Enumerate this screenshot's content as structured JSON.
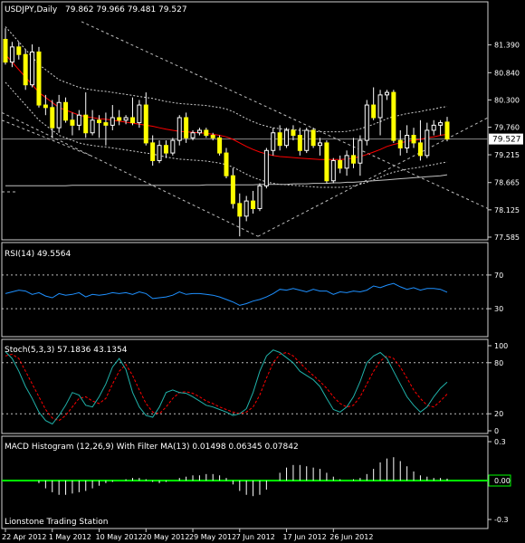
{
  "chart_data": [
    {
      "type": "candlestick",
      "title": "USDJPY,Daily",
      "ohlc_readout": "79.862 79.966 79.481 79.527",
      "ylim": [
        77.585,
        81.885
      ],
      "yticks": [
        "81.390",
        "80.840",
        "80.300",
        "79.760",
        "79.527",
        "79.215",
        "78.665",
        "78.125",
        "77.585"
      ],
      "current_price": 79.527,
      "x_dates": [
        "22 Apr 2012",
        "1 May 2012",
        "10 May 2012",
        "20 May 2012",
        "29 May 2012",
        "7 Jun 2012",
        "17 Jun 2012",
        "26 Jun 2012"
      ],
      "candles": [
        {
          "o": 81.5,
          "h": 81.72,
          "l": 81.0,
          "c": 81.05
        },
        {
          "o": 81.05,
          "h": 81.45,
          "l": 80.95,
          "c": 81.35
        },
        {
          "o": 81.35,
          "h": 81.45,
          "l": 81.1,
          "c": 81.2
        },
        {
          "o": 81.2,
          "h": 81.3,
          "l": 80.5,
          "c": 80.6
        },
        {
          "o": 80.6,
          "h": 81.4,
          "l": 80.55,
          "c": 81.25
        },
        {
          "o": 81.25,
          "h": 81.35,
          "l": 80.15,
          "c": 80.2
        },
        {
          "o": 80.2,
          "h": 80.4,
          "l": 80.0,
          "c": 80.15
        },
        {
          "o": 80.15,
          "h": 80.3,
          "l": 79.55,
          "c": 79.75
        },
        {
          "o": 79.75,
          "h": 80.4,
          "l": 79.65,
          "c": 80.25
        },
        {
          "o": 80.25,
          "h": 80.35,
          "l": 79.85,
          "c": 79.9
        },
        {
          "o": 79.9,
          "h": 80.05,
          "l": 79.6,
          "c": 79.8
        },
        {
          "o": 79.8,
          "h": 80.1,
          "l": 79.7,
          "c": 80.0
        },
        {
          "o": 80.0,
          "h": 80.45,
          "l": 79.55,
          "c": 79.65
        },
        {
          "o": 79.65,
          "h": 80.1,
          "l": 79.6,
          "c": 79.9
        },
        {
          "o": 79.9,
          "h": 80.0,
          "l": 79.55,
          "c": 79.85
        },
        {
          "o": 79.85,
          "h": 80.05,
          "l": 79.4,
          "c": 79.8
        },
        {
          "o": 79.8,
          "h": 80.2,
          "l": 79.7,
          "c": 79.95
        },
        {
          "o": 79.95,
          "h": 80.1,
          "l": 79.8,
          "c": 79.9
        },
        {
          "o": 79.9,
          "h": 80.0,
          "l": 79.82,
          "c": 79.95
        },
        {
          "o": 79.95,
          "h": 80.35,
          "l": 79.8,
          "c": 79.85
        },
        {
          "o": 79.85,
          "h": 80.3,
          "l": 79.75,
          "c": 80.2
        },
        {
          "o": 80.2,
          "h": 80.45,
          "l": 79.4,
          "c": 79.45
        },
        {
          "o": 79.45,
          "h": 79.6,
          "l": 79.0,
          "c": 79.1
        },
        {
          "o": 79.1,
          "h": 79.5,
          "l": 79.05,
          "c": 79.4
        },
        {
          "o": 79.4,
          "h": 79.5,
          "l": 79.15,
          "c": 79.25
        },
        {
          "o": 79.25,
          "h": 79.55,
          "l": 79.2,
          "c": 79.5
        },
        {
          "o": 79.5,
          "h": 80.0,
          "l": 79.4,
          "c": 79.95
        },
        {
          "o": 79.95,
          "h": 80.05,
          "l": 79.45,
          "c": 79.55
        },
        {
          "o": 79.55,
          "h": 79.7,
          "l": 79.5,
          "c": 79.65
        },
        {
          "o": 79.65,
          "h": 79.75,
          "l": 79.6,
          "c": 79.7
        },
        {
          "o": 79.7,
          "h": 79.75,
          "l": 79.55,
          "c": 79.6
        },
        {
          "o": 79.6,
          "h": 79.65,
          "l": 79.5,
          "c": 79.55
        },
        {
          "o": 79.55,
          "h": 79.6,
          "l": 79.2,
          "c": 79.25
        },
        {
          "o": 79.25,
          "h": 79.35,
          "l": 78.75,
          "c": 78.8
        },
        {
          "o": 78.8,
          "h": 78.95,
          "l": 78.15,
          "c": 78.25
        },
        {
          "o": 78.25,
          "h": 78.45,
          "l": 77.6,
          "c": 78.0
        },
        {
          "o": 78.0,
          "h": 78.4,
          "l": 77.9,
          "c": 78.3
        },
        {
          "o": 78.3,
          "h": 78.5,
          "l": 78.05,
          "c": 78.15
        },
        {
          "o": 78.15,
          "h": 78.65,
          "l": 78.1,
          "c": 78.6
        },
        {
          "o": 78.6,
          "h": 79.35,
          "l": 78.55,
          "c": 79.3
        },
        {
          "o": 79.3,
          "h": 79.75,
          "l": 79.2,
          "c": 79.65
        },
        {
          "o": 79.65,
          "h": 79.8,
          "l": 79.3,
          "c": 79.4
        },
        {
          "o": 79.4,
          "h": 79.75,
          "l": 79.35,
          "c": 79.7
        },
        {
          "o": 79.7,
          "h": 79.8,
          "l": 79.5,
          "c": 79.6
        },
        {
          "o": 79.6,
          "h": 79.75,
          "l": 79.2,
          "c": 79.3
        },
        {
          "o": 79.3,
          "h": 79.75,
          "l": 79.25,
          "c": 79.7
        },
        {
          "o": 79.7,
          "h": 79.75,
          "l": 79.35,
          "c": 79.4
        },
        {
          "o": 79.4,
          "h": 79.55,
          "l": 79.2,
          "c": 79.45
        },
        {
          "o": 79.45,
          "h": 79.5,
          "l": 78.65,
          "c": 78.7
        },
        {
          "o": 78.7,
          "h": 79.15,
          "l": 78.65,
          "c": 79.1
        },
        {
          "o": 79.1,
          "h": 79.2,
          "l": 78.85,
          "c": 78.95
        },
        {
          "o": 78.95,
          "h": 79.3,
          "l": 78.8,
          "c": 79.2
        },
        {
          "o": 79.2,
          "h": 79.55,
          "l": 78.95,
          "c": 79.05
        },
        {
          "o": 79.05,
          "h": 79.6,
          "l": 78.8,
          "c": 79.5
        },
        {
          "o": 79.5,
          "h": 80.3,
          "l": 79.4,
          "c": 80.2
        },
        {
          "o": 80.2,
          "h": 80.55,
          "l": 79.9,
          "c": 79.95
        },
        {
          "o": 79.95,
          "h": 80.5,
          "l": 79.6,
          "c": 80.4
        },
        {
          "o": 80.4,
          "h": 80.5,
          "l": 80.3,
          "c": 80.45
        },
        {
          "o": 80.45,
          "h": 80.5,
          "l": 79.45,
          "c": 79.5
        },
        {
          "o": 79.5,
          "h": 79.7,
          "l": 79.2,
          "c": 79.35
        },
        {
          "o": 79.35,
          "h": 79.8,
          "l": 79.25,
          "c": 79.6
        },
        {
          "o": 79.6,
          "h": 79.75,
          "l": 79.35,
          "c": 79.45
        },
        {
          "o": 79.45,
          "h": 79.9,
          "l": 79.1,
          "c": 79.2
        },
        {
          "o": 79.2,
          "h": 79.85,
          "l": 79.15,
          "c": 79.7
        },
        {
          "o": 79.7,
          "h": 79.9,
          "l": 79.6,
          "c": 79.8
        },
        {
          "o": 79.8,
          "h": 79.9,
          "l": 79.6,
          "c": 79.85
        },
        {
          "o": 79.862,
          "h": 79.966,
          "l": 79.481,
          "c": 79.527
        }
      ],
      "ma_fast": [
        81.2,
        81.05,
        80.9,
        80.75,
        80.6,
        80.45,
        80.35,
        80.25,
        80.15,
        80.1,
        80.05,
        80.0,
        79.97,
        79.95,
        79.93,
        79.92,
        79.9,
        79.88,
        79.86,
        79.84,
        79.82,
        79.8,
        79.78,
        79.75,
        79.72,
        79.7,
        79.68,
        79.67,
        79.66,
        79.65,
        79.64,
        79.62,
        79.6,
        79.57,
        79.52,
        79.45,
        79.38,
        79.32,
        79.27,
        79.23,
        79.2,
        79.18,
        79.17,
        79.16,
        79.15,
        79.14,
        79.13,
        79.12,
        79.12,
        79.12,
        79.12,
        79.13,
        79.15,
        79.18,
        79.22,
        79.27,
        79.32,
        79.38,
        79.42,
        79.45,
        79.48,
        79.5,
        79.52,
        79.55,
        79.57,
        79.6,
        79.62
      ],
      "ma_slow": [
        78.6,
        78.6,
        78.6,
        78.6,
        78.6,
        78.6,
        78.6,
        78.6,
        78.6,
        78.6,
        78.61,
        78.61,
        78.61,
        78.61,
        78.61,
        78.61,
        78.61,
        78.61,
        78.61,
        78.61,
        78.61,
        78.61,
        78.61,
        78.61,
        78.61,
        78.61,
        78.61,
        78.61,
        78.61,
        78.61,
        78.62,
        78.62,
        78.62,
        78.62,
        78.62,
        78.62,
        78.62,
        78.62,
        78.63,
        78.63,
        78.63,
        78.63,
        78.63,
        78.64,
        78.64,
        78.64,
        78.65,
        78.65,
        78.65,
        78.66,
        78.66,
        78.67,
        78.67,
        78.68,
        78.69,
        78.7,
        78.71,
        78.72,
        78.73,
        78.74,
        78.75,
        78.76,
        78.77,
        78.78,
        78.79,
        78.8,
        78.82
      ]
    },
    {
      "type": "line",
      "title": "RSI(14) 49.5564",
      "ylim": [
        0,
        100
      ],
      "yticks": [
        "70",
        "30"
      ],
      "levels": [
        70,
        30
      ],
      "values": [
        48,
        50,
        52,
        51,
        47,
        49,
        45,
        43,
        48,
        46,
        47,
        49,
        44,
        47,
        46,
        47,
        49,
        48,
        49,
        47,
        50,
        48,
        42,
        43,
        44,
        46,
        50,
        47,
        48,
        48,
        47,
        46,
        44,
        41,
        38,
        34,
        36,
        39,
        41,
        44,
        48,
        53,
        52,
        54,
        52,
        50,
        53,
        51,
        51,
        47,
        50,
        49,
        51,
        50,
        52,
        57,
        55,
        58,
        60,
        56,
        53,
        55,
        52,
        54,
        54,
        53,
        49.5564
      ]
    },
    {
      "type": "line",
      "title": "Stoch(5,3,3) 57.1836 43.1354",
      "ylim": [
        0,
        100
      ],
      "yticks": [
        "100",
        "80",
        "20",
        "0"
      ],
      "levels": [
        80,
        20
      ],
      "main": [
        93,
        85,
        70,
        52,
        38,
        22,
        12,
        8,
        18,
        30,
        45,
        42,
        30,
        28,
        40,
        55,
        75,
        85,
        72,
        45,
        28,
        18,
        16,
        28,
        45,
        48,
        45,
        44,
        40,
        35,
        30,
        28,
        25,
        22,
        18,
        20,
        26,
        45,
        70,
        88,
        95,
        92,
        86,
        80,
        70,
        65,
        60,
        52,
        38,
        25,
        22,
        28,
        40,
        58,
        80,
        88,
        92,
        85,
        70,
        55,
        40,
        30,
        22,
        28,
        40,
        50,
        57.18
      ],
      "signal": [
        88,
        90,
        85,
        70,
        55,
        40,
        25,
        15,
        12,
        18,
        28,
        38,
        40,
        35,
        32,
        38,
        55,
        70,
        78,
        65,
        48,
        32,
        22,
        20,
        28,
        38,
        45,
        46,
        44,
        40,
        35,
        32,
        28,
        25,
        22,
        20,
        22,
        28,
        42,
        62,
        80,
        90,
        92,
        88,
        80,
        72,
        65,
        58,
        50,
        40,
        32,
        28,
        30,
        40,
        55,
        70,
        82,
        88,
        85,
        75,
        62,
        48,
        38,
        30,
        28,
        35,
        43.14
      ]
    },
    {
      "type": "bar",
      "title": "MACD Histogram (12,26,9) With Filter MA(13) 0.01498 0.06345 0.07842",
      "ylim": [
        -0.3,
        0.3
      ],
      "yticks": [
        "0.3",
        "0.00",
        "-0.3"
      ],
      "values": [
        0,
        0,
        0,
        0,
        0,
        -0.02,
        -0.06,
        -0.09,
        -0.11,
        -0.11,
        -0.1,
        -0.09,
        -0.08,
        -0.06,
        -0.04,
        -0.02,
        -0.01,
        0.0,
        0.01,
        0.02,
        0.02,
        0.01,
        -0.01,
        -0.02,
        -0.01,
        0.0,
        0.02,
        0.03,
        0.04,
        0.04,
        0.05,
        0.05,
        0.04,
        0.02,
        -0.03,
        -0.08,
        -0.11,
        -0.12,
        -0.11,
        -0.07,
        0.0,
        0.06,
        0.1,
        0.12,
        0.12,
        0.11,
        0.1,
        0.09,
        0.06,
        0.03,
        0.01,
        0.0,
        0.01,
        0.02,
        0.05,
        0.09,
        0.14,
        0.17,
        0.18,
        0.15,
        0.11,
        0.07,
        0.04,
        0.03,
        0.02,
        0.02,
        0.015
      ],
      "filter_level": 0.0
    }
  ],
  "watermark": "Lionstone Trading Station",
  "colors": {
    "bull_candle": "#ffff00",
    "bear_candle": "#ffff00",
    "ma_fast": "#ff0000",
    "ma_slow": "#c0c0c0",
    "rsi": "#1e90ff",
    "stoch_main": "#20b2aa",
    "stoch_signal": "#ff0000",
    "macd_hist": "#ffffff",
    "macd_zero": "#00ff00"
  }
}
